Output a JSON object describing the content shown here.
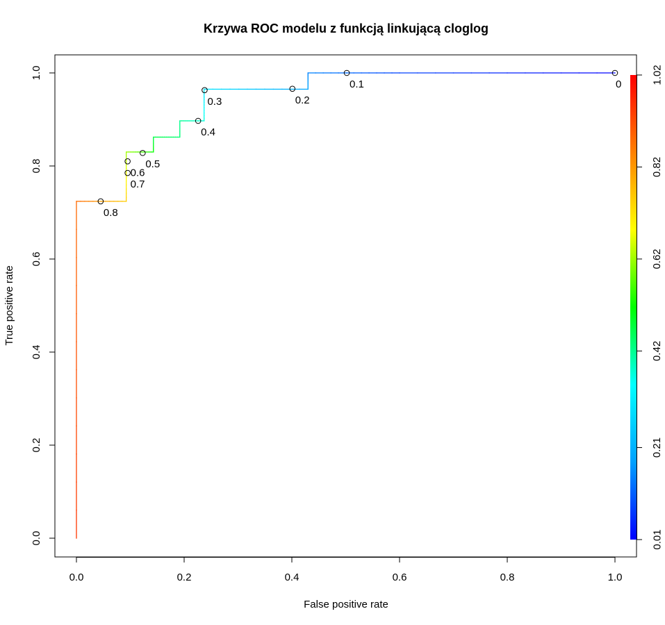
{
  "chart_data": {
    "type": "line",
    "title": "Krzywa ROC modelu z funkcją linkującą cloglog",
    "xlabel": "False positive rate",
    "ylabel": "True positive rate",
    "xlim": [
      0,
      1
    ],
    "ylim": [
      0,
      1
    ],
    "x_ticks": [
      "0.0",
      "0.2",
      "0.4",
      "0.6",
      "0.8",
      "1.0"
    ],
    "y_ticks": [
      "0.0",
      "0.2",
      "0.4",
      "0.6",
      "0.8",
      "1.0"
    ],
    "grid": false,
    "colorbar": {
      "min": 0.01,
      "max": 1.02,
      "tick_values": [
        0.01,
        0.21,
        0.42,
        0.62,
        0.82,
        1.02
      ],
      "tick_labels": [
        "0.01",
        "0.21",
        "0.42",
        "0.62",
        "0.82",
        "1.02"
      ],
      "colors": [
        "#0000ff",
        "#00a0ff",
        "#00ffff",
        "#00ff00",
        "#ffff00",
        "#ff8000",
        "#ff0000"
      ]
    },
    "series": [
      {
        "values": [
          {
            "x": 0.0,
            "y": 0.0,
            "c": 0.95
          },
          {
            "x": 0.0,
            "y": 0.724,
            "c": 0.88
          },
          {
            "x": 0.0925,
            "y": 0.724,
            "c": 0.75
          },
          {
            "x": 0.0925,
            "y": 0.83,
            "c": 0.62
          },
          {
            "x": 0.143,
            "y": 0.83,
            "c": 0.52
          },
          {
            "x": 0.143,
            "y": 0.862,
            "c": 0.47
          },
          {
            "x": 0.192,
            "y": 0.862,
            "c": 0.44
          },
          {
            "x": 0.192,
            "y": 0.897,
            "c": 0.42
          },
          {
            "x": 0.237,
            "y": 0.897,
            "c": 0.37
          },
          {
            "x": 0.237,
            "y": 0.965,
            "c": 0.3
          },
          {
            "x": 0.43,
            "y": 0.965,
            "c": 0.19
          },
          {
            "x": 0.43,
            "y": 1.0,
            "c": 0.15
          },
          {
            "x": 0.6,
            "y": 1.0,
            "c": 0.08
          },
          {
            "x": 1.0,
            "y": 1.0,
            "c": 0.01
          }
        ]
      }
    ],
    "cutoff_points": [
      {
        "label": "0.8",
        "x": 0.045,
        "y": 0.724
      },
      {
        "label": "0.7",
        "x": 0.095,
        "y": 0.785
      },
      {
        "label": "0.6",
        "x": 0.095,
        "y": 0.81
      },
      {
        "label": "0.5",
        "x": 0.123,
        "y": 0.828
      },
      {
        "label": "0.4",
        "x": 0.226,
        "y": 0.897
      },
      {
        "label": "0.3",
        "x": 0.238,
        "y": 0.963
      },
      {
        "label": "0.2",
        "x": 0.401,
        "y": 0.966
      },
      {
        "label": "0.1",
        "x": 0.502,
        "y": 1.0
      },
      {
        "label": "0",
        "x": 1.0,
        "y": 1.0
      }
    ]
  }
}
